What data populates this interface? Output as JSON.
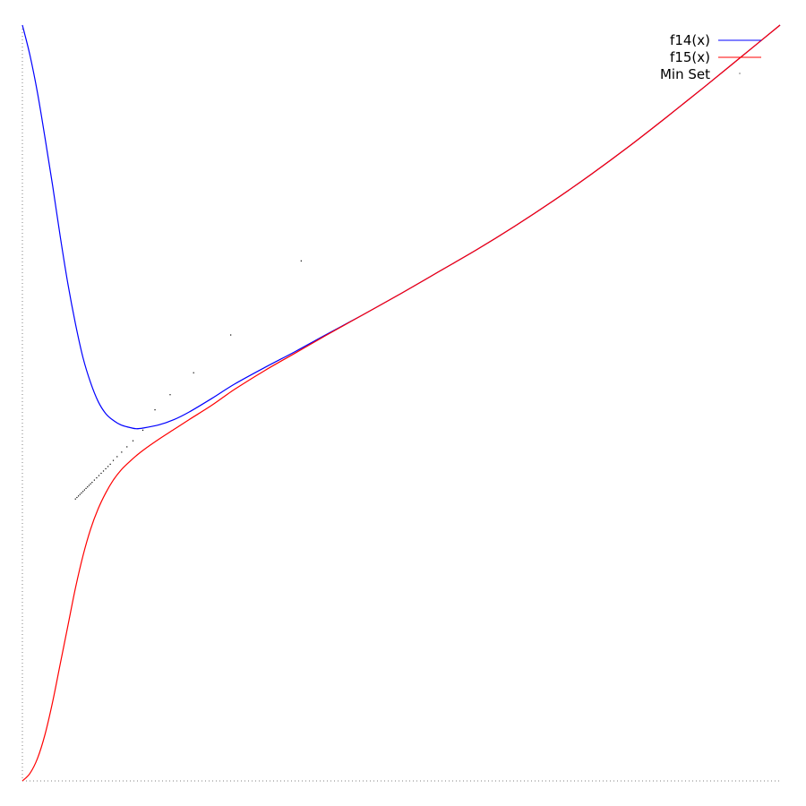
{
  "chart_data": {
    "type": "line",
    "title": "",
    "xlabel": "",
    "ylabel": "",
    "xlim": [
      0,
      1
    ],
    "ylim": [
      0,
      1
    ],
    "grid": false,
    "legend_position": "top-right",
    "series": [
      {
        "name": "f14(x)",
        "color": "#0000ff",
        "style": "line",
        "points": [
          [
            0.0,
            1.0
          ],
          [
            0.01,
            0.96
          ],
          [
            0.02,
            0.91
          ],
          [
            0.03,
            0.85
          ],
          [
            0.04,
            0.787
          ],
          [
            0.05,
            0.72
          ],
          [
            0.06,
            0.658
          ],
          [
            0.07,
            0.605
          ],
          [
            0.08,
            0.56
          ],
          [
            0.09,
            0.527
          ],
          [
            0.1,
            0.502
          ],
          [
            0.11,
            0.486
          ],
          [
            0.12,
            0.477
          ],
          [
            0.13,
            0.471
          ],
          [
            0.14,
            0.468
          ],
          [
            0.15,
            0.466
          ],
          [
            0.16,
            0.467
          ],
          [
            0.18,
            0.471
          ],
          [
            0.2,
            0.478
          ],
          [
            0.22,
            0.488
          ],
          [
            0.25,
            0.506
          ],
          [
            0.28,
            0.525
          ],
          [
            0.32,
            0.547
          ],
          [
            0.36,
            0.568
          ],
          [
            0.4,
            0.59
          ],
          [
            0.45,
            0.617
          ],
          [
            0.5,
            0.645
          ],
          [
            0.55,
            0.674
          ],
          [
            0.6,
            0.703
          ],
          [
            0.65,
            0.734
          ],
          [
            0.7,
            0.767
          ],
          [
            0.75,
            0.802
          ],
          [
            0.8,
            0.839
          ],
          [
            0.85,
            0.878
          ],
          [
            0.9,
            0.918
          ],
          [
            0.95,
            0.959
          ],
          [
            1.0,
            1.0
          ]
        ]
      },
      {
        "name": "f15(x)",
        "color": "#ff0000",
        "style": "line",
        "points": [
          [
            0.0,
            0.0
          ],
          [
            0.01,
            0.01
          ],
          [
            0.02,
            0.03
          ],
          [
            0.03,
            0.062
          ],
          [
            0.04,
            0.105
          ],
          [
            0.05,
            0.155
          ],
          [
            0.06,
            0.205
          ],
          [
            0.07,
            0.255
          ],
          [
            0.08,
            0.298
          ],
          [
            0.09,
            0.333
          ],
          [
            0.1,
            0.36
          ],
          [
            0.11,
            0.381
          ],
          [
            0.12,
            0.398
          ],
          [
            0.13,
            0.411
          ],
          [
            0.14,
            0.421
          ],
          [
            0.15,
            0.43
          ],
          [
            0.16,
            0.438
          ],
          [
            0.18,
            0.452
          ],
          [
            0.2,
            0.465
          ],
          [
            0.22,
            0.478
          ],
          [
            0.25,
            0.497
          ],
          [
            0.28,
            0.518
          ],
          [
            0.32,
            0.543
          ],
          [
            0.36,
            0.566
          ],
          [
            0.4,
            0.589
          ],
          [
            0.45,
            0.617
          ],
          [
            0.5,
            0.645
          ],
          [
            0.55,
            0.674
          ],
          [
            0.6,
            0.703
          ],
          [
            0.65,
            0.734
          ],
          [
            0.7,
            0.767
          ],
          [
            0.75,
            0.802
          ],
          [
            0.8,
            0.839
          ],
          [
            0.85,
            0.878
          ],
          [
            0.9,
            0.918
          ],
          [
            0.95,
            0.959
          ],
          [
            1.0,
            1.0
          ]
        ]
      },
      {
        "name": "Min Set",
        "color": "#000000",
        "style": "points",
        "points": [
          [
            0.07,
            0.373
          ],
          [
            0.072,
            0.375
          ],
          [
            0.074,
            0.377
          ],
          [
            0.076,
            0.379
          ],
          [
            0.078,
            0.381
          ],
          [
            0.08,
            0.383
          ],
          [
            0.082,
            0.385
          ],
          [
            0.084,
            0.387
          ],
          [
            0.086,
            0.389
          ],
          [
            0.088,
            0.391
          ],
          [
            0.09,
            0.393
          ],
          [
            0.092,
            0.395
          ],
          [
            0.095,
            0.398
          ],
          [
            0.098,
            0.401
          ],
          [
            0.101,
            0.404
          ],
          [
            0.104,
            0.407
          ],
          [
            0.107,
            0.41
          ],
          [
            0.11,
            0.413
          ],
          [
            0.113,
            0.416
          ],
          [
            0.116,
            0.419
          ],
          [
            0.12,
            0.424
          ],
          [
            0.125,
            0.429
          ],
          [
            0.131,
            0.435
          ],
          [
            0.138,
            0.442
          ],
          [
            0.146,
            0.45
          ],
          [
            0.159,
            0.464
          ],
          [
            0.175,
            0.491
          ],
          [
            0.195,
            0.511
          ],
          [
            0.226,
            0.54
          ],
          [
            0.275,
            0.59
          ],
          [
            0.368,
            0.688
          ]
        ]
      }
    ]
  }
}
